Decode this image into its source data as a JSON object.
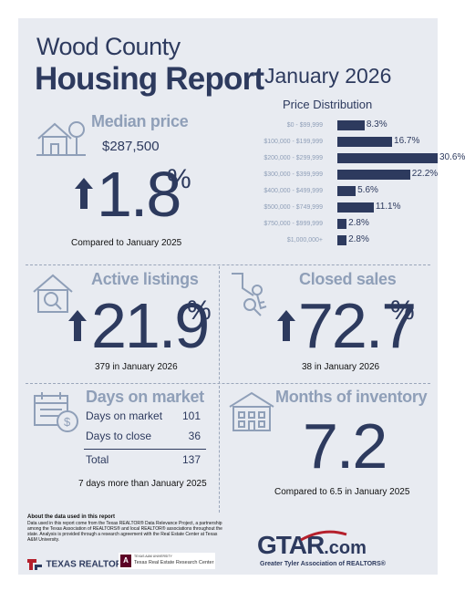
{
  "header": {
    "county": "Wood County",
    "report": "Housing Report",
    "month": "January 2026"
  },
  "median_price": {
    "heading": "Median price",
    "value": "$287,500",
    "change": "1.8",
    "unit": "%",
    "caption": "Compared to January 2025",
    "icon": "house-tree-icon"
  },
  "price_distribution": {
    "title": "Price Distribution",
    "rows": [
      {
        "label": "$0 - $99,999",
        "value": "8.3%"
      },
      {
        "label": "$100,000 - $199,999",
        "value": "16.7%"
      },
      {
        "label": "$200,000 - $299,999",
        "value": "30.6%"
      },
      {
        "label": "$300,000 - $399,999",
        "value": "22.2%"
      },
      {
        "label": "$400,000 - $499,999",
        "value": "5.6%"
      },
      {
        "label": "$500,000 - $749,999",
        "value": "11.1%"
      },
      {
        "label": "$750,000 - $999,999",
        "value": "2.8%"
      },
      {
        "label": "$1,000,000+",
        "value": "2.8%"
      }
    ]
  },
  "chart_data": {
    "type": "bar",
    "title": "Price Distribution",
    "categories": [
      "$0 - $99,999",
      "$100,000 - $199,999",
      "$200,000 - $299,999",
      "$300,000 - $399,999",
      "$400,000 - $499,999",
      "$500,000 - $749,999",
      "$750,000 - $999,999",
      "$1,000,000+"
    ],
    "values": [
      8.3,
      16.7,
      30.6,
      22.2,
      5.6,
      11.1,
      2.8,
      2.8
    ],
    "orientation": "horizontal",
    "color": "#2d3a5e"
  },
  "active_listings": {
    "heading": "Active listings",
    "change": "21.9",
    "unit": "%",
    "caption": "379 in January 2026",
    "icon": "house-magnifier-icon"
  },
  "closed_sales": {
    "heading": "Closed sales",
    "change": "72.7",
    "unit": "%",
    "caption": "38 in January 2026",
    "icon": "hand-keys-icon"
  },
  "days_on_market": {
    "heading": "Days on market",
    "rows": [
      {
        "label": "Days on market",
        "value": "101"
      },
      {
        "label": "Days to close",
        "value": "36"
      }
    ],
    "total_label": "Total",
    "total_value": "137",
    "caption": "7 days more than January 2025",
    "icon": "calendar-dollar-icon"
  },
  "months_inventory": {
    "heading": "Months of inventory",
    "value": "7.2",
    "caption": "Compared to 6.5 in January 2025",
    "icon": "building-icon"
  },
  "footer": {
    "heading": "About the data used in this report",
    "text": "Data used in this report come from the Texas REALTOR® Data Relevance Project, a partnership among the Texas Association of REALTORS® and local REALTOR® associations throughout the state. Analysis is provided through a research agreement with the Real Estate Center at Texas A&M University.",
    "texas_realtors": "TEXAS REALTORS",
    "tamu_small": "TEXAS A&M UNIVERSITY",
    "tamu_center": "Texas Real Estate Research Center",
    "gtar": "GTAR",
    "gtar_com": ".com",
    "gtar_tagline": "Greater Tyler Association of REALTORS®"
  },
  "colors": {
    "navy": "#2d3a5e",
    "slate": "#8f9fb8",
    "panel": "#e8ebf1",
    "red": "#b5202c"
  }
}
